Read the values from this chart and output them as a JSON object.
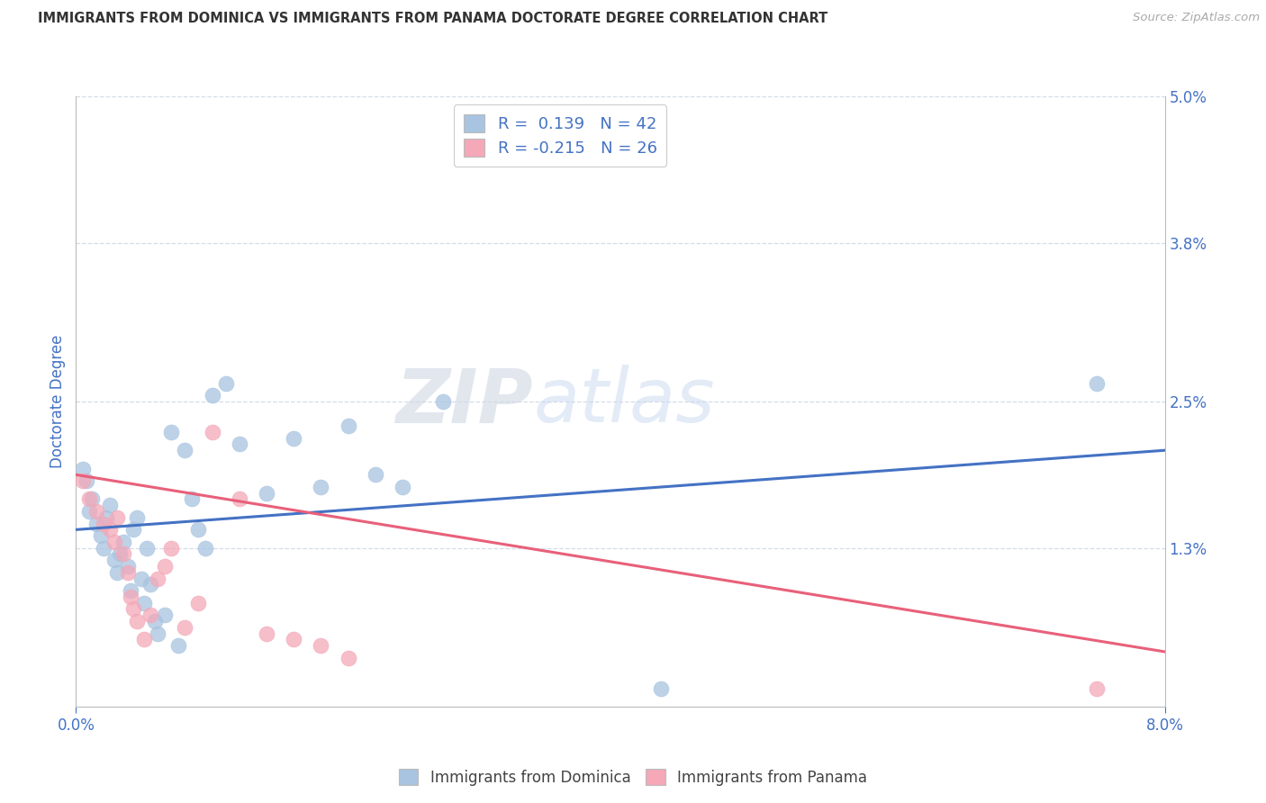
{
  "title": "IMMIGRANTS FROM DOMINICA VS IMMIGRANTS FROM PANAMA DOCTORATE DEGREE CORRELATION CHART",
  "source": "Source: ZipAtlas.com",
  "ylabel": "Doctorate Degree",
  "xlim": [
    0.0,
    8.0
  ],
  "ylim": [
    0.0,
    5.0
  ],
  "xtick_positions": [
    0.0,
    8.0
  ],
  "xticklabels": [
    "0.0%",
    "8.0%"
  ],
  "yticks_right": [
    1.3,
    2.5,
    3.8,
    5.0
  ],
  "yticklabels_right": [
    "1.3%",
    "2.5%",
    "3.8%",
    "5.0%"
  ],
  "legend1_label": "R =  0.139   N = 42",
  "legend2_label": "R = -0.215   N = 26",
  "dominica_color": "#a8c4e0",
  "panama_color": "#f4a8b8",
  "trend_dominica_color": "#4472c4",
  "trend_panama_color": "#e8607a",
  "watermark_zip": "ZIP",
  "watermark_atlas": "atlas",
  "blue_scatter_x": [
    0.05,
    0.08,
    0.1,
    0.12,
    0.15,
    0.18,
    0.2,
    0.22,
    0.25,
    0.28,
    0.3,
    0.32,
    0.35,
    0.38,
    0.4,
    0.42,
    0.45,
    0.48,
    0.5,
    0.52,
    0.55,
    0.58,
    0.6,
    0.65,
    0.7,
    0.75,
    0.8,
    0.85,
    0.9,
    0.95,
    1.0,
    1.1,
    1.2,
    1.4,
    1.6,
    1.8,
    2.0,
    2.2,
    2.4,
    2.7,
    4.3,
    7.5
  ],
  "blue_scatter_y": [
    1.95,
    1.85,
    1.6,
    1.7,
    1.5,
    1.4,
    1.3,
    1.55,
    1.65,
    1.2,
    1.1,
    1.25,
    1.35,
    1.15,
    0.95,
    1.45,
    1.55,
    1.05,
    0.85,
    1.3,
    1.0,
    0.7,
    0.6,
    0.75,
    2.25,
    0.5,
    2.1,
    1.7,
    1.45,
    1.3,
    2.55,
    2.65,
    2.15,
    1.75,
    2.2,
    1.8,
    2.3,
    1.9,
    1.8,
    2.5,
    0.15,
    2.65
  ],
  "pink_scatter_x": [
    0.05,
    0.1,
    0.15,
    0.2,
    0.25,
    0.28,
    0.3,
    0.35,
    0.38,
    0.4,
    0.42,
    0.45,
    0.5,
    0.55,
    0.6,
    0.65,
    0.7,
    0.8,
    0.9,
    1.0,
    1.2,
    1.4,
    1.6,
    1.8,
    2.0,
    7.5
  ],
  "pink_scatter_y": [
    1.85,
    1.7,
    1.6,
    1.5,
    1.45,
    1.35,
    1.55,
    1.25,
    1.1,
    0.9,
    0.8,
    0.7,
    0.55,
    0.75,
    1.05,
    1.15,
    1.3,
    0.65,
    0.85,
    2.25,
    1.7,
    0.6,
    0.55,
    0.5,
    0.4,
    0.15
  ],
  "blue_trend_x0": 0.0,
  "blue_trend_x1": 8.0,
  "blue_trend_y0": 1.45,
  "blue_trend_y1": 2.1,
  "pink_trend_x0": 0.0,
  "pink_trend_x1": 8.0,
  "pink_trend_y0": 1.9,
  "pink_trend_y1": 0.45,
  "grid_color": "#d4dce8",
  "bg_color": "#ffffff",
  "title_color": "#333333",
  "axis_label_color": "#4472c4",
  "tick_label_color": "#4472c4"
}
